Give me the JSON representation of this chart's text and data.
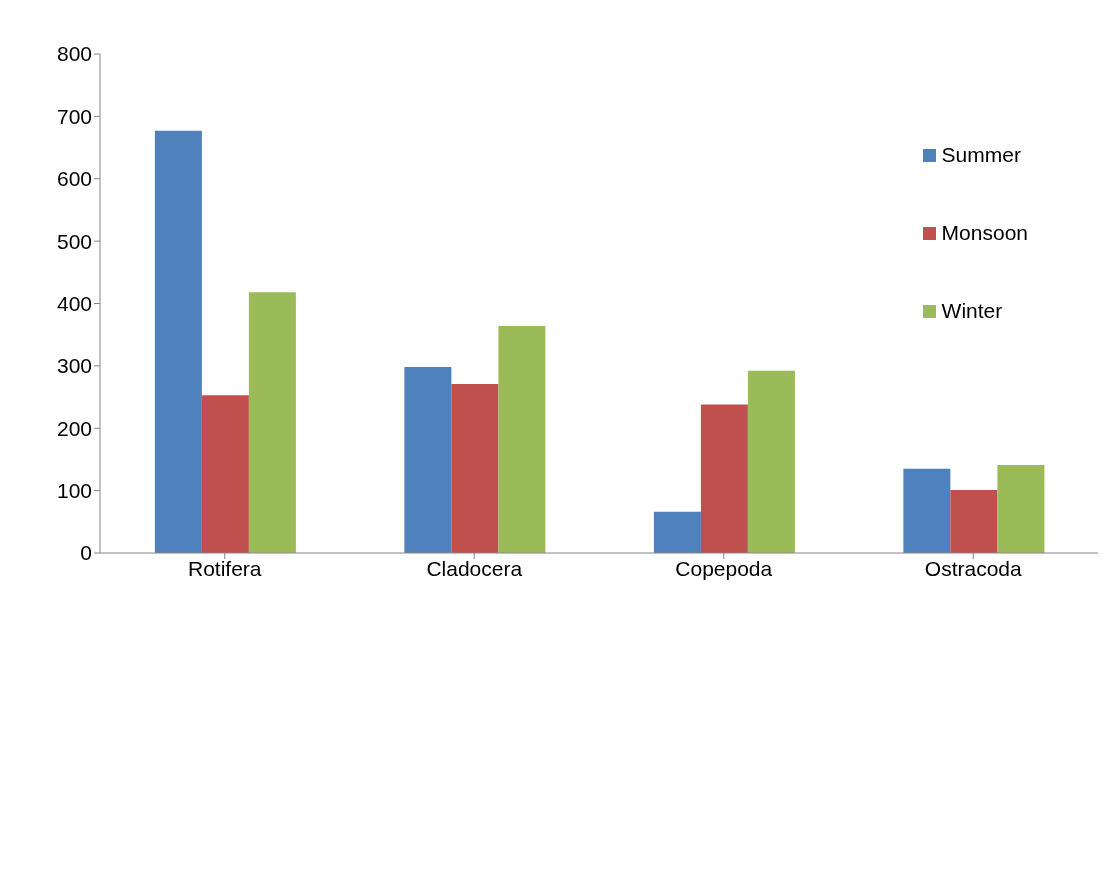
{
  "chart_data": {
    "type": "bar",
    "categories": [
      "Rotifera",
      "Cladocera",
      "Copepoda",
      "Ostracoda"
    ],
    "series": [
      {
        "name": "Summer",
        "color": "#4f81bd",
        "values": [
          677,
          298,
          66,
          135
        ]
      },
      {
        "name": "Monsoon",
        "color": "#c0504d",
        "values": [
          253,
          271,
          238,
          101
        ]
      },
      {
        "name": "Winter",
        "color": "#9bbb59",
        "values": [
          418,
          364,
          292,
          141
        ]
      }
    ],
    "ylim": [
      0,
      800
    ],
    "yticks": [
      0,
      100,
      200,
      300,
      400,
      500,
      600,
      700,
      800
    ],
    "grid": false,
    "legend": "top right"
  }
}
